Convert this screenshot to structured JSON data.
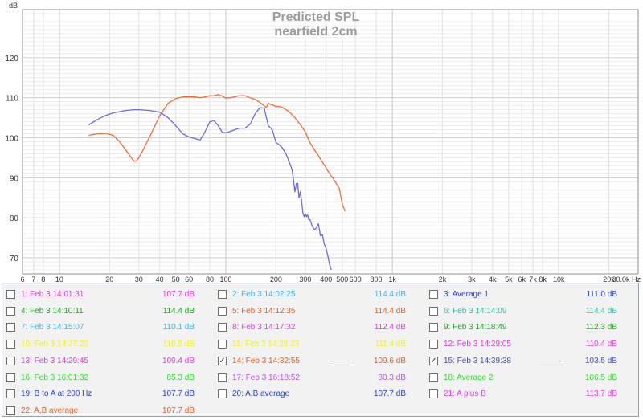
{
  "chart_data": {
    "type": "line",
    "title": "Predicted SPL",
    "subtitle": "nearfield 2cm",
    "ylabel": "dB",
    "xlabel": "Hz",
    "xscale": "log",
    "xlim": [
      6,
      30000
    ],
    "ylim": [
      66,
      132
    ],
    "grid": true,
    "y_ticks": [
      "120",
      "110",
      "100",
      "90",
      "80",
      "70"
    ],
    "y_tick_values": [
      120,
      110,
      100,
      90,
      80,
      70
    ],
    "x_ticks": [
      "6",
      "7",
      "8",
      "10",
      "20",
      "30",
      "40",
      "50",
      "60",
      "80",
      "100",
      "200",
      "300",
      "400",
      "500",
      "600",
      "800",
      "1k",
      "2k",
      "3k",
      "4k",
      "5k",
      "6k",
      "7k",
      "8k",
      "10k",
      "20k",
      "30.0k Hz"
    ],
    "x_tick_values": [
      6,
      7,
      8,
      10,
      20,
      30,
      40,
      50,
      60,
      80,
      100,
      200,
      300,
      400,
      500,
      600,
      800,
      1000,
      2000,
      3000,
      4000,
      5000,
      6000,
      7000,
      8000,
      10000,
      20000,
      30000
    ],
    "series": [
      {
        "name": "14: Feb 3 14:32:55",
        "color": "#f26b38",
        "x": [
          15,
          17,
          19,
          21,
          23,
          25,
          27,
          28,
          29,
          30,
          32,
          35,
          38,
          40,
          45,
          50,
          55,
          60,
          65,
          70,
          75,
          80,
          85,
          90,
          95,
          100,
          110,
          120,
          130,
          140,
          150,
          160,
          170,
          175,
          180,
          190,
          200,
          210,
          220,
          240,
          260,
          280,
          300,
          320,
          340,
          360,
          380,
          400,
          420,
          440,
          460,
          480,
          500,
          520
        ],
        "y": [
          100.6,
          101.0,
          101.1,
          100.6,
          99.0,
          97.0,
          95.0,
          94.2,
          94.2,
          95.0,
          97.2,
          100.4,
          103.5,
          105.5,
          108.6,
          109.8,
          110.2,
          110.2,
          110.2,
          110.0,
          110.2,
          110.5,
          110.5,
          110.8,
          110.4,
          109.9,
          110.1,
          110.5,
          110.5,
          110.0,
          109.6,
          108.8,
          108.0,
          107.5,
          108.6,
          108.2,
          107.8,
          107.8,
          107.5,
          106.5,
          105.0,
          103.3,
          101.5,
          98.8,
          97.0,
          95.5,
          93.9,
          92.5,
          91.0,
          89.9,
          88.6,
          87.4,
          83.5,
          81.6
        ]
      },
      {
        "name": "15: Feb 3 14:39:38",
        "color": "#6a6ae6",
        "x": [
          15,
          17,
          19,
          21,
          23,
          25,
          28,
          30,
          35,
          40,
          45,
          50,
          55,
          60,
          65,
          70,
          75,
          80,
          85,
          90,
          95,
          100,
          110,
          120,
          130,
          140,
          150,
          160,
          170,
          180,
          190,
          200,
          210,
          220,
          230,
          240,
          250,
          255,
          260,
          265,
          270,
          275,
          280,
          285,
          290,
          295,
          300,
          305,
          310,
          315,
          320,
          330,
          340,
          350,
          360,
          370,
          380,
          390,
          400,
          410,
          420,
          430
        ],
        "y": [
          103.2,
          104.6,
          105.6,
          106.2,
          106.5,
          106.8,
          107.0,
          107.0,
          106.8,
          106.4,
          105.0,
          103.0,
          101.0,
          100.2,
          99.8,
          99.4,
          101.5,
          104.0,
          104.3,
          103.0,
          101.4,
          101.2,
          101.8,
          102.4,
          102.4,
          103.4,
          106.0,
          107.5,
          107.4,
          103.0,
          102.0,
          98.8,
          98.2,
          97.3,
          96.0,
          94.0,
          92.0,
          89.4,
          86.5,
          88.5,
          88.6,
          85.0,
          86.5,
          84.3,
          81.3,
          80.3,
          81.0,
          80.3,
          80.7,
          79.5,
          79.6,
          78.0,
          77.0,
          77.5,
          78.5,
          75.5,
          75.8,
          73.5,
          72.4,
          70.5,
          68.3,
          67.0
        ]
      }
    ]
  },
  "legend": [
    [
      {
        "label": "1: Feb 3 14:01:31",
        "value": "107.7 dB",
        "color": "#e23ce2",
        "checked": false
      },
      {
        "label": "2: Feb 3 14:02:25",
        "value": "114.4 dB",
        "color": "#3cb4e8",
        "checked": false
      },
      {
        "label": "3: Average 1",
        "value": "111.0 dB",
        "color": "#2e44c4",
        "checked": false
      }
    ],
    [
      {
        "label": "4: Feb 3 14:10:11",
        "value": "114.4 dB",
        "color": "#1fa51f",
        "checked": false
      },
      {
        "label": "5: Feb 3 14:12:35",
        "value": "114.4 dB",
        "color": "#ea5b1e",
        "checked": false
      },
      {
        "label": "6: Feb 3 14:14:09",
        "value": "114.4 dB",
        "color": "#2ebda8",
        "checked": false
      }
    ],
    [
      {
        "label": "7: Feb 3 14:15:07",
        "value": "110.1 dB",
        "color": "#3cb4e8",
        "checked": false
      },
      {
        "label": "8: Feb 3 14:17:32",
        "value": "112.4 dB",
        "color": "#e23ce2",
        "checked": false
      },
      {
        "label": "9: Feb 3 14:18:49",
        "value": "112.3 dB",
        "color": "#1fa51f",
        "checked": false
      }
    ],
    [
      {
        "label": "10: Feb 3 14:27:20",
        "value": "110.5 dB",
        "color": "#f2f21e",
        "checked": false
      },
      {
        "label": "11: Feb 3 14:28:23",
        "value": "111.4 dB",
        "color": "#f2f21e",
        "checked": false
      },
      {
        "label": "12: Feb 3 14:29:05",
        "value": "110.4 dB",
        "color": "#e23ce2",
        "checked": false
      }
    ],
    [
      {
        "label": "13: Feb 3 14:29:45",
        "value": "109.4 dB",
        "color": "#e23ce2",
        "checked": false
      },
      {
        "label": "14: Feb 3 14:32:55",
        "value": "109.6 dB",
        "color": "#ea5b1e",
        "checked": true,
        "swatch": "#f26b38"
      },
      {
        "label": "15: Feb 3 14:39:38",
        "value": "103.5 dB",
        "color": "#4a4ad8",
        "checked": true,
        "swatch": "#6a6ae6"
      }
    ],
    [
      {
        "label": "16: Feb 3 16:01:32",
        "value": "85.3 dB",
        "color": "#38d838",
        "checked": false
      },
      {
        "label": "17: Feb 3 16:18:52",
        "value": "80.3 dB",
        "color": "#b05ae6",
        "checked": false
      },
      {
        "label": "18: Average 2",
        "value": "106.5 dB",
        "color": "#38d838",
        "checked": false
      }
    ],
    [
      {
        "label": "19: B to A at 200 Hz",
        "value": "107.7 dB",
        "color": "#2e44c4",
        "checked": false
      },
      {
        "label": "20: A,B average",
        "value": "107.7 dB",
        "color": "#2e44c4",
        "checked": false
      },
      {
        "label": "21: A plus B",
        "value": "113.7 dB",
        "color": "#e23ce2",
        "checked": false
      }
    ],
    [
      {
        "label": "22: A,B average",
        "value": "107.7 dB",
        "color": "#ea5b1e",
        "checked": false
      }
    ]
  ]
}
